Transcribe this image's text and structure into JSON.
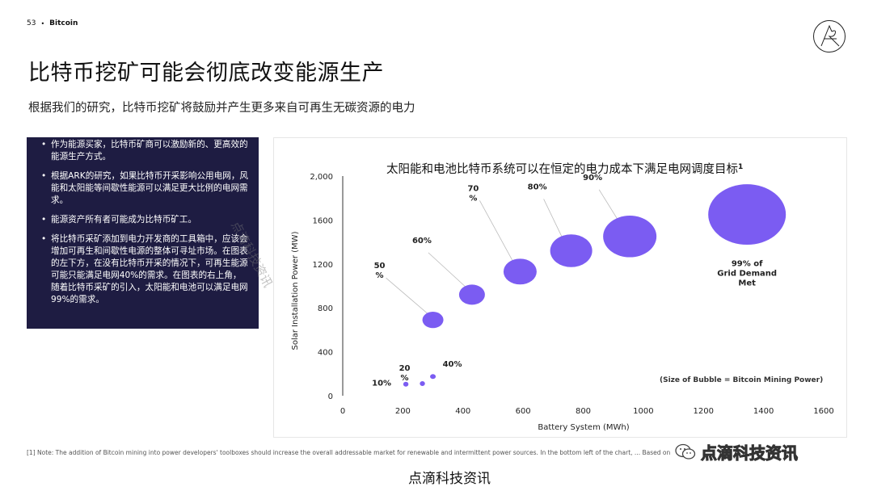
{
  "header": {
    "page_number": "53",
    "bullet": "•",
    "section": "Bitcoin"
  },
  "title": "比特币挖矿可能会彻底改变能源生产",
  "subtitle": "根据我们的研究，比特币挖矿将鼓励并产生更多来自可再生无碳资源的电力",
  "panel": {
    "bullets": [
      "作为能源买家，比特币矿商可以激励新的、更高效的能源生产方式。",
      "根据ARK的研究，如果比特币开采影响公用电网，风能和太阳能等间歇性能源可以满足更大比例的电网需求。",
      "能源资产所有者可能成为比特币矿工。",
      "将比特币采矿添加到电力开发商的工具箱中，应该会增加可再生和间歇性电源的整体可寻址市场。在图表的左下方，在没有比特币开采的情况下，可再生能源可能只能满足电网40%的需求。在图表的右上角，随着比特币采矿的引入，太阳能和电池可以满足电网99%的需求。"
    ]
  },
  "footnote": "[1] Note: The addition of Bitcoin mining into power developers' toolboxes should increase the overall addressable market for renewable and intermittent power sources. In the bottom left of the chart, ... Based on",
  "watermarks": {
    "bottom": "点滴科技资讯",
    "right": "点滴科技资讯",
    "diagonal": "点滴科技资讯"
  },
  "colors": {
    "bubble": "#7b5cf2",
    "panel_bg": "#1e1c42",
    "axis": "#333333"
  },
  "icons": {
    "logo": "ark-logo",
    "wechat": "wechat-icon"
  },
  "chart_data": {
    "type": "scatter",
    "title": "太阳能和电池比特币系统可以在恒定的电力成本下满足电网调度目标",
    "title_superscript": "1",
    "xlabel": "Battery System (MWh)",
    "ylabel": "Solar Installation Power (MW)",
    "xlim": [
      0,
      1600
    ],
    "ylim": [
      0,
      2000
    ],
    "x_ticks": [
      "0",
      "200",
      "400",
      "600",
      "800",
      "1000",
      "1200",
      "1400",
      "1600"
    ],
    "x_tick_values": [
      0,
      200,
      400,
      600,
      800,
      1000,
      1200,
      1400,
      1600
    ],
    "y_ticks": [
      "0",
      "400",
      "800",
      "1200",
      "1600",
      "2,000"
    ],
    "y_tick_values": [
      0,
      400,
      800,
      1200,
      1600,
      2000
    ],
    "size_note": "(Size of Bubble = Bitcoin Mining Power)",
    "grid": false,
    "points": [
      {
        "label": "10%",
        "x": 210,
        "y": 105,
        "size": 0.3
      },
      {
        "label": "20%",
        "x": 265,
        "y": 110,
        "size": 0.3
      },
      {
        "label": "40%",
        "x": 300,
        "y": 175,
        "size": 0.35
      },
      {
        "label": "50%",
        "x": 300,
        "y": 690,
        "size": 1.3
      },
      {
        "label": "60%",
        "x": 430,
        "y": 920,
        "size": 1.6
      },
      {
        "label": "70%",
        "x": 590,
        "y": 1130,
        "size": 2.05
      },
      {
        "label": "80%",
        "x": 760,
        "y": 1320,
        "size": 2.6
      },
      {
        "label": "90%",
        "x": 955,
        "y": 1450,
        "size": 3.3
      },
      {
        "label": "99% of Grid Demand Met",
        "x": 1345,
        "y": 1650,
        "size": 4.8
      }
    ]
  }
}
